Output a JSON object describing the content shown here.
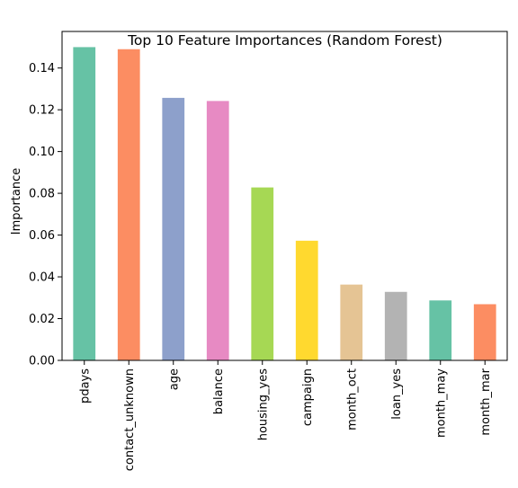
{
  "chart_data": {
    "type": "bar",
    "title": "Top 10 Feature Importances (Random Forest)",
    "xlabel": "",
    "ylabel": "Importance",
    "categories": [
      "pdays",
      "contact_unknown",
      "age",
      "balance",
      "housing_yes",
      "campaign",
      "month_oct",
      "loan_yes",
      "month_may",
      "month_mar"
    ],
    "values": [
      0.15,
      0.149,
      0.1257,
      0.1242,
      0.0828,
      0.0573,
      0.0363,
      0.0328,
      0.0287,
      0.0269
    ],
    "colors": [
      "#66c2a5",
      "#fc8d62",
      "#8da0cb",
      "#e78ac3",
      "#a6d854",
      "#ffd92f",
      "#e5c494",
      "#b3b3b3",
      "#66c2a5",
      "#fc8d62"
    ],
    "ylim": [
      0,
      0.1575
    ],
    "yticks": [
      "0.00",
      "0.02",
      "0.04",
      "0.06",
      "0.08",
      "0.10",
      "0.12",
      "0.14"
    ],
    "grid": false,
    "legend": "none"
  }
}
